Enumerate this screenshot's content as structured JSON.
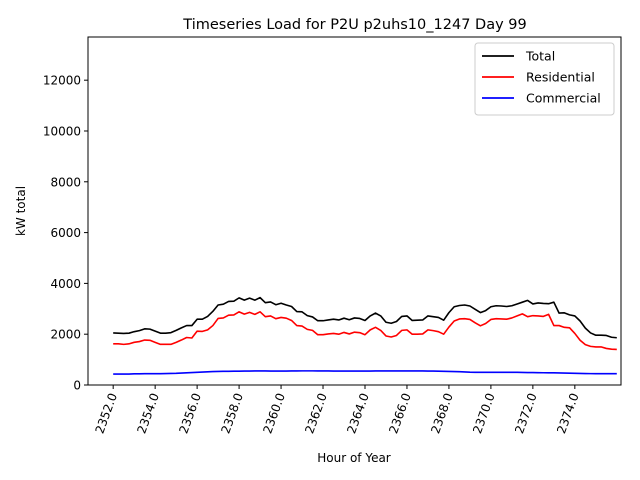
{
  "chart_data": {
    "type": "line",
    "title": "Timeseries Load for P2U p2uhs10_1247  Day 99",
    "xlabel": "Hour of Year",
    "ylabel": "kW total",
    "xlim": [
      2350.8,
      2376.2
    ],
    "ylim": [
      0,
      13700
    ],
    "x_ticks": [
      2352,
      2354,
      2356,
      2358,
      2360,
      2362,
      2364,
      2366,
      2368,
      2370,
      2372,
      2374
    ],
    "x_tick_labels": [
      "2352.0",
      "2354.0",
      "2356.0",
      "2358.0",
      "2360.0",
      "2362.0",
      "2364.0",
      "2366.0",
      "2368.0",
      "2370.0",
      "2372.0",
      "2374.0"
    ],
    "y_ticks": [
      0,
      2000,
      4000,
      6000,
      8000,
      10000,
      12000
    ],
    "y_tick_labels": [
      "0",
      "2000",
      "4000",
      "6000",
      "8000",
      "10000",
      "12000"
    ],
    "grid": false,
    "legend_position": "top-right",
    "x_start": 2352,
    "x_step": 0.25,
    "series": [
      {
        "name": "Total",
        "color": "#000000",
        "values": [
          2050,
          2040,
          2030,
          2040,
          2100,
          2140,
          2210,
          2200,
          2120,
          2040,
          2040,
          2060,
          2150,
          2250,
          2340,
          2340,
          2590,
          2590,
          2700,
          2900,
          3150,
          3180,
          3290,
          3300,
          3430,
          3340,
          3420,
          3340,
          3440,
          3240,
          3270,
          3160,
          3220,
          3150,
          3090,
          2890,
          2880,
          2730,
          2680,
          2530,
          2530,
          2560,
          2590,
          2560,
          2630,
          2570,
          2640,
          2620,
          2540,
          2720,
          2830,
          2720,
          2470,
          2430,
          2500,
          2700,
          2720,
          2540,
          2550,
          2560,
          2720,
          2690,
          2660,
          2550,
          2850,
          3080,
          3130,
          3150,
          3110,
          2980,
          2850,
          2930,
          3080,
          3120,
          3110,
          3090,
          3120,
          3190,
          3260,
          3330,
          3190,
          3230,
          3210,
          3200,
          3260,
          2830,
          2840,
          2760,
          2720,
          2520,
          2240,
          2050,
          1960,
          1960,
          1950,
          1880,
          1860
        ]
      },
      {
        "name": "Residential",
        "color": "#ff0000",
        "values": [
          1620,
          1620,
          1600,
          1620,
          1680,
          1710,
          1770,
          1760,
          1680,
          1600,
          1600,
          1600,
          1680,
          1770,
          1870,
          1850,
          2120,
          2110,
          2170,
          2340,
          2620,
          2640,
          2750,
          2760,
          2880,
          2790,
          2860,
          2780,
          2880,
          2690,
          2720,
          2610,
          2660,
          2630,
          2540,
          2340,
          2320,
          2190,
          2150,
          1980,
          1980,
          2010,
          2030,
          2000,
          2070,
          2010,
          2080,
          2060,
          1980,
          2170,
          2270,
          2150,
          1930,
          1890,
          1950,
          2150,
          2170,
          2000,
          2000,
          2010,
          2170,
          2140,
          2100,
          2000,
          2280,
          2520,
          2600,
          2610,
          2580,
          2450,
          2330,
          2420,
          2580,
          2610,
          2600,
          2590,
          2640,
          2720,
          2800,
          2690,
          2730,
          2720,
          2700,
          2780,
          2340,
          2340,
          2270,
          2250,
          2030,
          1760,
          1590,
          1520,
          1500,
          1500,
          1440,
          1410,
          1400
        ]
      },
      {
        "name": "Commercial",
        "color": "#0000ff",
        "values": [
          430,
          430,
          430,
          430,
          440,
          440,
          445,
          445,
          445,
          445,
          450,
          455,
          460,
          470,
          480,
          490,
          500,
          510,
          520,
          530,
          535,
          538,
          540,
          542,
          545,
          548,
          550,
          552,
          553,
          552,
          550,
          550,
          550,
          550,
          552,
          555,
          556,
          556,
          556,
          555,
          553,
          552,
          550,
          550,
          550,
          550,
          550,
          550,
          550,
          550,
          552,
          553,
          553,
          553,
          553,
          553,
          553,
          553,
          552,
          552,
          550,
          548,
          545,
          540,
          535,
          530,
          525,
          515,
          505,
          500,
          500,
          500,
          500,
          500,
          500,
          500,
          500,
          498,
          495,
          490,
          488,
          485,
          482,
          480,
          478,
          475,
          470,
          465,
          460,
          455,
          450,
          448,
          446,
          445,
          445,
          445,
          445
        ]
      }
    ]
  }
}
